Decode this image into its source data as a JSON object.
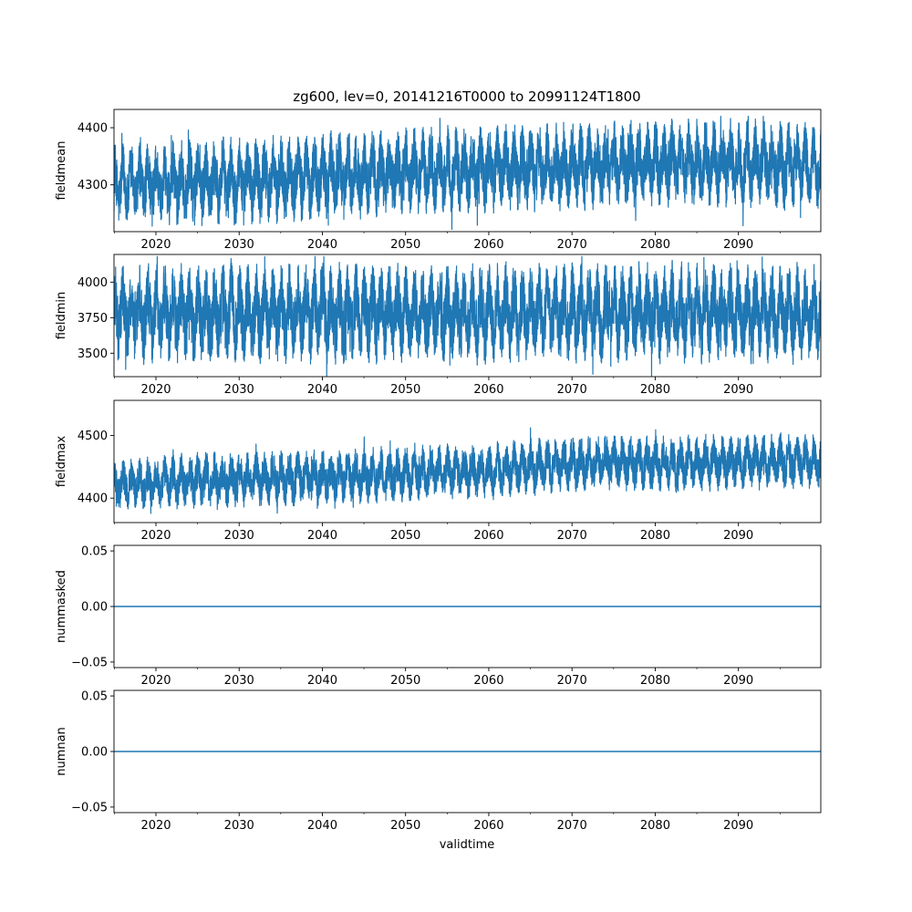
{
  "chart_data": {
    "type": "line",
    "title": "zg600, lev=0, 20141216T0000 to 20991124T1800",
    "xlabel": "validtime",
    "xlim": [
      2014.96,
      2099.9
    ],
    "x_ticks": [
      "2020",
      "2030",
      "2040",
      "2050",
      "2060",
      "2070",
      "2080",
      "2090"
    ],
    "line_color": "#1f77b4",
    "grid": false,
    "panels": [
      {
        "ylabel": "fieldmean",
        "ylim": [
          4218,
          4432
        ],
        "y_ticks": [
          "4300",
          "4400"
        ],
        "series": {
          "x": [
            2015,
            2020,
            2025,
            2030,
            2035,
            2040,
            2045,
            2050,
            2055,
            2060,
            2065,
            2070,
            2075,
            2080,
            2085,
            2090,
            2095,
            2099.9
          ],
          "mean": [
            4300,
            4302,
            4305,
            4308,
            4312,
            4315,
            4318,
            4322,
            4325,
            4328,
            4330,
            4332,
            4335,
            4337,
            4338,
            4338,
            4335,
            4330
          ],
          "amplitude": [
            50,
            52,
            55,
            55,
            55,
            55,
            55,
            55,
            55,
            55,
            55,
            55,
            55,
            55,
            55,
            55,
            55,
            55
          ],
          "seasonal_cycles_per_year": 1,
          "min": 4222,
          "max": 4420
        }
      },
      {
        "ylabel": "fieldmin",
        "ylim": [
          3335,
          4195
        ],
        "y_ticks": [
          "3500",
          "3750",
          "4000"
        ],
        "series": {
          "x": [
            2015,
            2030,
            2045,
            2060,
            2075,
            2090,
            2099.9
          ],
          "mean": [
            3780,
            3780,
            3780,
            3782,
            3785,
            3785,
            3780
          ],
          "amplitude": [
            250,
            250,
            250,
            250,
            250,
            250,
            250
          ],
          "seasonal_cycles_per_year": 1,
          "min": 3340,
          "max": 4180
        }
      },
      {
        "ylabel": "fieldmax",
        "ylim": [
          4361,
          4556
        ],
        "y_ticks": [
          "4400",
          "4500"
        ],
        "series": {
          "x": [
            2015,
            2020,
            2025,
            2030,
            2035,
            2040,
            2045,
            2050,
            2055,
            2060,
            2065,
            2070,
            2075,
            2080,
            2085,
            2090,
            2095,
            2099.9
          ],
          "mean": [
            4420,
            4425,
            4428,
            4430,
            4432,
            4433,
            4435,
            4440,
            4442,
            4443,
            4450,
            4455,
            4458,
            4455,
            4456,
            4458,
            4460,
            4458
          ],
          "amplitude": [
            30,
            30,
            32,
            32,
            32,
            32,
            32,
            32,
            32,
            32,
            32,
            32,
            32,
            32,
            32,
            32,
            32,
            32
          ],
          "seasonal_cycles_per_year": 1,
          "min": 4368,
          "max": 4552
        }
      },
      {
        "ylabel": "nummasked",
        "ylim": [
          -0.055,
          0.055
        ],
        "y_ticks": [
          "−0.05",
          "0.00",
          "0.05"
        ],
        "series": {
          "x": [
            2014.96,
            2099.9
          ],
          "y": [
            0,
            0
          ]
        }
      },
      {
        "ylabel": "numnan",
        "ylim": [
          -0.055,
          0.055
        ],
        "y_ticks": [
          "−0.05",
          "0.00",
          "0.05"
        ],
        "series": {
          "x": [
            2014.96,
            2099.9
          ],
          "y": [
            0,
            0
          ]
        }
      }
    ]
  }
}
